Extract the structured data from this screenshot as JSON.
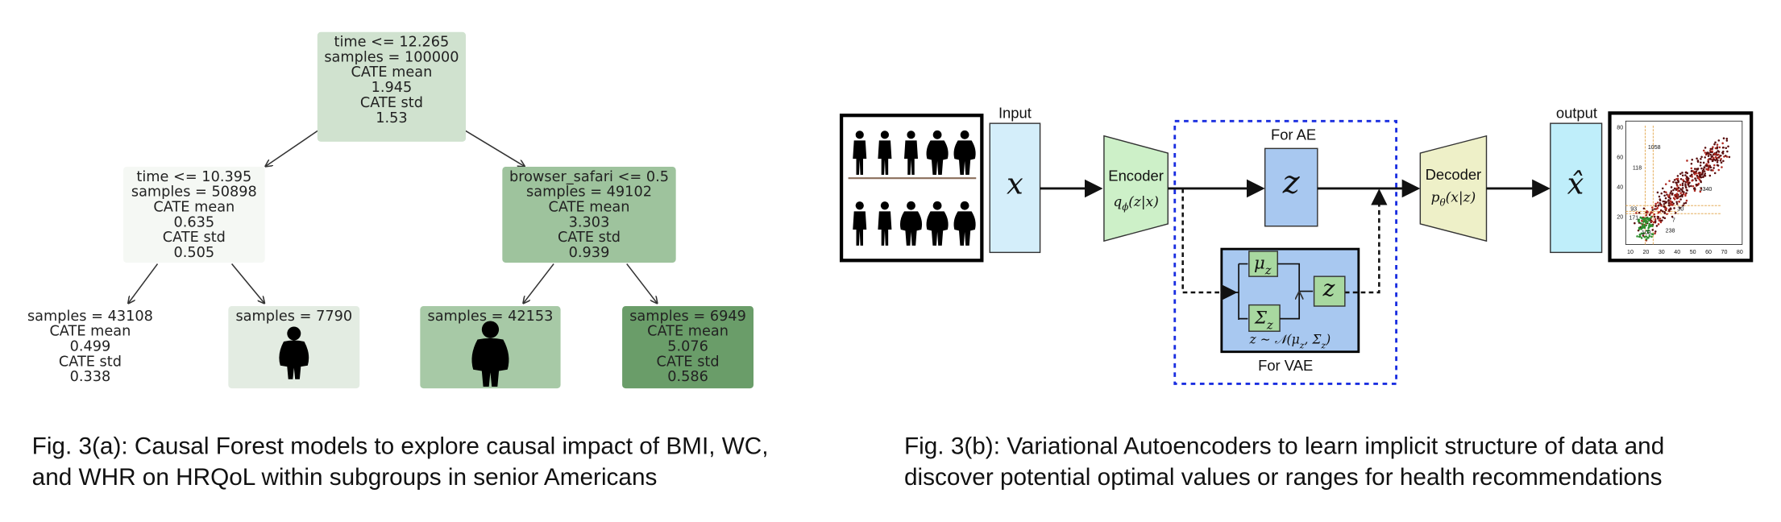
{
  "tree": {
    "nodes": [
      {
        "lines": [
          "time <= 12.265",
          "samples = 100000",
          "CATE mean",
          "1.945",
          "CATE std",
          "1.53"
        ]
      },
      {
        "lines": [
          "time <= 10.395",
          "samples = 50898",
          "CATE mean",
          "0.635",
          "CATE std",
          "0.505"
        ]
      },
      {
        "lines": [
          "browser_safari <= 0.5",
          "samples = 49102",
          "CATE mean",
          "3.303",
          "CATE std",
          "0.939"
        ]
      },
      {
        "lines": [
          "samples = 43108",
          "CATE mean",
          "0.499",
          "CATE std",
          "0.338"
        ]
      },
      {
        "lines": [
          "samples = 7790"
        ]
      },
      {
        "lines": [
          "samples = 42153"
        ]
      },
      {
        "lines": [
          "samples = 6949",
          "CATE mean",
          "5.076",
          "CATE std",
          "0.586"
        ]
      }
    ]
  },
  "vae": {
    "input_label": "Input",
    "input_symbol": "x",
    "encoder": "Encoder",
    "encoder_dist": [
      {
        "t": "q"
      },
      {
        "t": "ϕ",
        "sub": true
      },
      {
        "t": "(z|x)"
      }
    ],
    "ae_label": "For AE",
    "latent": "z",
    "mu": [
      {
        "t": "μ"
      },
      {
        "t": "z",
        "sub": true
      }
    ],
    "sigma": [
      {
        "t": "Σ"
      },
      {
        "t": "z",
        "sub": true
      }
    ],
    "sample": "z",
    "formula": [
      {
        "t": "z ∼ 𝒩(μ"
      },
      {
        "t": "z",
        "sub": true
      },
      {
        "t": ", Σ"
      },
      {
        "t": "z",
        "sub": true
      },
      {
        "t": ")"
      }
    ],
    "vae_label": "For VAE",
    "decoder": "Decoder",
    "decoder_dist": [
      {
        "t": "p"
      },
      {
        "t": "θ",
        "sub": true
      },
      {
        "t": "(x|z)"
      }
    ],
    "output_label": "output",
    "output_symbol": "x̂",
    "scatter": {
      "xticks": [
        "10",
        "20",
        "30",
        "40",
        "50",
        "60",
        "70",
        "80"
      ],
      "yticks": [
        "80",
        "60",
        "40",
        "20"
      ],
      "annotations": [
        "1058",
        "118",
        "3340",
        "93",
        "171",
        "30",
        "7",
        "103",
        "238"
      ]
    }
  },
  "captions": [
    {
      "lines": [
        "Fig. 3(a): Causal Forest models to explore causal impact of BMI, WC,",
        "and WHR on HRQoL within subgroups in senior Americans"
      ]
    },
    {
      "lines": [
        "Fig. 3(b): Variational Autoencoders to learn implicit structure of data and",
        "discover potential optimal values or ranges for health recommendations"
      ]
    }
  ]
}
